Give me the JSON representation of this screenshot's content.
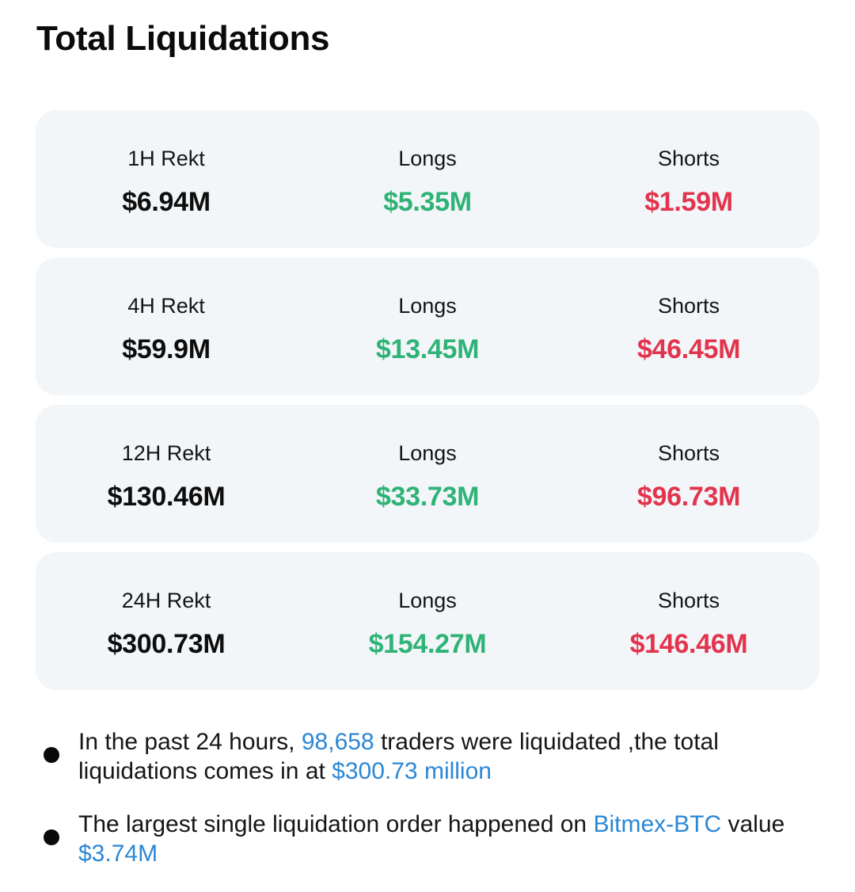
{
  "title": "Total Liquidations",
  "rows": [
    {
      "period_label": "1H Rekt",
      "total": "$6.94M",
      "longs_label": "Longs",
      "longs": "$5.35M",
      "shorts_label": "Shorts",
      "shorts": "$1.59M"
    },
    {
      "period_label": "4H Rekt",
      "total": "$59.9M",
      "longs_label": "Longs",
      "longs": "$13.45M",
      "shorts_label": "Shorts",
      "shorts": "$46.45M"
    },
    {
      "period_label": "12H Rekt",
      "total": "$130.46M",
      "longs_label": "Longs",
      "longs": "$33.73M",
      "shorts_label": "Shorts",
      "shorts": "$96.73M"
    },
    {
      "period_label": "24H Rekt",
      "total": "$300.73M",
      "longs_label": "Longs",
      "longs": "$154.27M",
      "shorts_label": "Shorts",
      "shorts": "$146.46M"
    }
  ],
  "notes": {
    "first": {
      "prefix": "In the past 24 hours, ",
      "trader_count": "98,658",
      "middle": " traders were liquidated ,the total liquidations comes in at ",
      "total_amount": "$300.73 million"
    },
    "second": {
      "prefix": "The largest single liquidation order happened on ",
      "exchange_pair": "Bitmex-BTC",
      "middle": " value ",
      "order_value": "$3.74M"
    }
  },
  "colors": {
    "long": "#2fb376",
    "short": "#e2344d",
    "highlight": "#2a87d6",
    "card_bg": "#f3f6f9"
  }
}
